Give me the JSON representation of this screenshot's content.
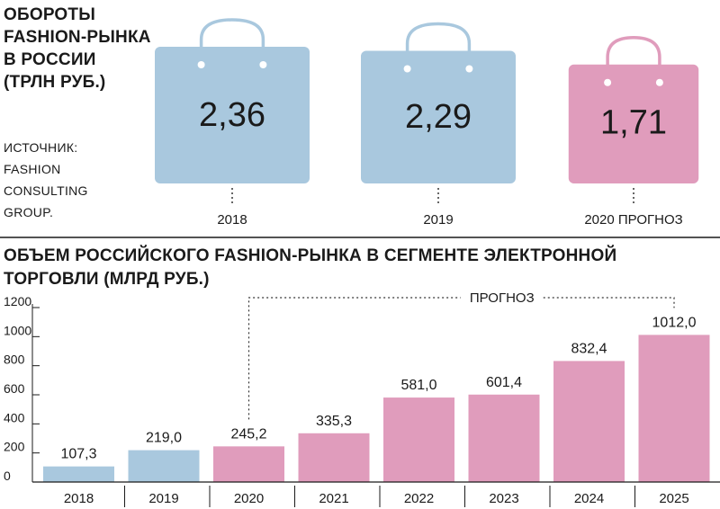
{
  "colors": {
    "actual": "#a9c8de",
    "forecast": "#e09cbc",
    "text": "#1a1a1a"
  },
  "turnover": {
    "title_lines": [
      "ОБОРОТЫ",
      "FASHION-РЫНКА",
      "В РОССИИ",
      "(ТРЛН РУБ.)"
    ],
    "source_lines": [
      "ИСТОЧНИК:",
      "FASHION",
      "CONSULTING",
      "GROUP."
    ]
  },
  "ecommerce": {
    "title_lines": [
      "ОБЪЕМ РОССИЙСКОГО FASHION-РЫНКА В СЕГМЕНТЕ ЭЛЕКТРОННОЙ",
      "ТОРГОВЛИ (МЛРД РУБ.)"
    ],
    "forecast_label": "ПРОГНОЗ"
  },
  "chart_data": [
    {
      "type": "pictogram",
      "categories": [
        "2018",
        "2019",
        "2020 ПРОГНОЗ"
      ],
      "values": [
        2.36,
        2.29,
        1.71
      ],
      "value_labels": [
        "2,36",
        "2,29",
        "1,71"
      ],
      "forecast": [
        false,
        false,
        true
      ]
    },
    {
      "type": "bar",
      "categories": [
        "2018",
        "2019",
        "2020",
        "2021",
        "2022",
        "2023",
        "2024",
        "2025"
      ],
      "values": [
        107.3,
        219.0,
        245.2,
        335.3,
        581.0,
        601.4,
        832.4,
        1012.0
      ],
      "value_labels": [
        "107,3",
        "219,0",
        "245,2",
        "335,3",
        "581,0",
        "601,4",
        "832,4",
        "1012,0"
      ],
      "forecast": [
        false,
        false,
        true,
        true,
        true,
        true,
        true,
        true
      ],
      "ylim": [
        0,
        1200
      ],
      "yticks": [
        "0",
        "200",
        "400",
        "600",
        "800",
        "1000",
        "1200"
      ],
      "ytick_values": [
        0,
        200,
        400,
        600,
        800,
        1000,
        1200
      ],
      "forecast_range": [
        "2020",
        "2025"
      ]
    }
  ]
}
